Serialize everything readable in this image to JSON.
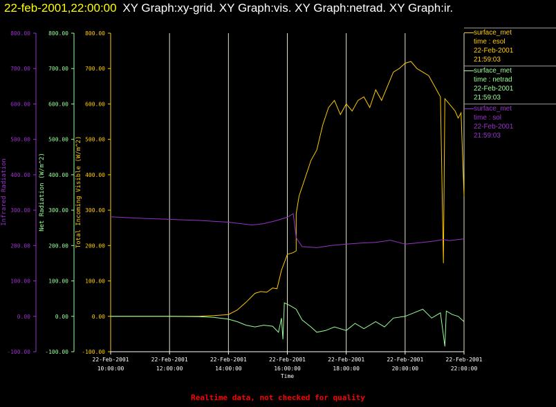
{
  "header": {
    "timestamp": "22-feb-2001,22:00:00",
    "graphs": "XY Graph:xy-grid.  XY Graph:vis.  XY Graph:netrad.  XY Graph:ir."
  },
  "footer": {
    "notice": "Realtime data, not checked for quality"
  },
  "legend": [
    {
      "line1": "surface_met",
      "line2": "time : esol",
      "line3": "22-Feb-2001",
      "line4": "21:59:03",
      "color": "#ffcc00"
    },
    {
      "line1": "surface_met",
      "line2": "time : netrad",
      "line3": "22-Feb-2001",
      "line4": "21:59:03",
      "color": "#99ff99"
    },
    {
      "line1": "surface_met",
      "line2": "time : sol",
      "line3": "22-Feb-2001",
      "line4": "21:59:03",
      "color": "#9933cc"
    }
  ],
  "chart_data": {
    "type": "line",
    "xlabel": "Time",
    "x_ticks": [
      {
        "date": "22-Feb-2001",
        "time": "10:00:00",
        "hour": 10
      },
      {
        "date": "22-Feb-2001",
        "time": "12:00:00",
        "hour": 12
      },
      {
        "date": "22-Feb-2001",
        "time": "14:00:00",
        "hour": 14
      },
      {
        "date": "22-Feb-2001",
        "time": "16:00:00",
        "hour": 16
      },
      {
        "date": "22-Feb-2001",
        "time": "18:00:00",
        "hour": 18
      },
      {
        "date": "22-Feb-2001",
        "time": "20:00:00",
        "hour": 20
      },
      {
        "date": "22-Feb-2001",
        "time": "22:00:00",
        "hour": 22
      }
    ],
    "xlim": [
      10,
      22
    ],
    "ylim": [
      -100,
      800
    ],
    "y_ticks": [
      "800.00",
      "700.00",
      "600.00",
      "500.00",
      "400.00",
      "300.00",
      "200.00",
      "100.00",
      "0.00",
      "-100.00"
    ],
    "y_tick_values": [
      800,
      700,
      600,
      500,
      400,
      300,
      200,
      100,
      0,
      -100
    ],
    "axes": [
      {
        "name": "ir",
        "label": "Infrared Radiation",
        "color": "#9933cc"
      },
      {
        "name": "netrad",
        "label": "Net Radiation (W/m^2)",
        "color": "#99ff99"
      },
      {
        "name": "vis",
        "label": "Total Incoming Visible (W/m^2)",
        "color": "#ffcc00"
      }
    ],
    "grid": true,
    "series": [
      {
        "name": "time : esol",
        "color": "#ffcc00",
        "points": [
          [
            10,
            0
          ],
          [
            11,
            0
          ],
          [
            12,
            0
          ],
          [
            13,
            0
          ],
          [
            13.5,
            2
          ],
          [
            14,
            5
          ],
          [
            14.3,
            18
          ],
          [
            14.6,
            40
          ],
          [
            14.9,
            65
          ],
          [
            15.1,
            70
          ],
          [
            15.3,
            68
          ],
          [
            15.5,
            80
          ],
          [
            15.65,
            78
          ],
          [
            15.8,
            130
          ],
          [
            16.0,
            175
          ],
          [
            16.2,
            180
          ],
          [
            16.3,
            185
          ],
          [
            16.3,
            290
          ],
          [
            16.4,
            340
          ],
          [
            16.6,
            390
          ],
          [
            16.8,
            440
          ],
          [
            17.0,
            470
          ],
          [
            17.2,
            540
          ],
          [
            17.4,
            590
          ],
          [
            17.6,
            610
          ],
          [
            17.8,
            570
          ],
          [
            18.0,
            600
          ],
          [
            18.2,
            580
          ],
          [
            18.4,
            610
          ],
          [
            18.6,
            620
          ],
          [
            18.8,
            590
          ],
          [
            19.0,
            640
          ],
          [
            19.2,
            610
          ],
          [
            19.4,
            650
          ],
          [
            19.6,
            690
          ],
          [
            19.8,
            700
          ],
          [
            20.0,
            715
          ],
          [
            20.2,
            720
          ],
          [
            20.4,
            700
          ],
          [
            20.6,
            690
          ],
          [
            20.8,
            680
          ],
          [
            21.0,
            650
          ],
          [
            21.2,
            620
          ],
          [
            21.3,
            150
          ],
          [
            21.35,
            615
          ],
          [
            21.5,
            600
          ],
          [
            21.7,
            580
          ],
          [
            21.8,
            560
          ],
          [
            21.9,
            575
          ],
          [
            22.0,
            340
          ]
        ]
      },
      {
        "name": "time : netrad",
        "color": "#99ff99",
        "points": [
          [
            10,
            0
          ],
          [
            11,
            0
          ],
          [
            12,
            0
          ],
          [
            13,
            -1
          ],
          [
            13.5,
            -3
          ],
          [
            14,
            -8
          ],
          [
            14.3,
            -15
          ],
          [
            14.6,
            -25
          ],
          [
            14.9,
            -30
          ],
          [
            15.2,
            -25
          ],
          [
            15.5,
            -28
          ],
          [
            15.7,
            -45
          ],
          [
            15.8,
            -5
          ],
          [
            15.85,
            -65
          ],
          [
            15.9,
            38
          ],
          [
            16.1,
            30
          ],
          [
            16.3,
            20
          ],
          [
            16.5,
            -10
          ],
          [
            16.8,
            -30
          ],
          [
            17.0,
            -45
          ],
          [
            17.3,
            -40
          ],
          [
            17.6,
            -30
          ],
          [
            18.0,
            -40
          ],
          [
            18.3,
            -20
          ],
          [
            18.6,
            -35
          ],
          [
            19.0,
            -15
          ],
          [
            19.3,
            -30
          ],
          [
            19.6,
            -5
          ],
          [
            20.0,
            0
          ],
          [
            20.3,
            10
          ],
          [
            20.6,
            20
          ],
          [
            20.9,
            -5
          ],
          [
            21.2,
            10
          ],
          [
            21.35,
            -85
          ],
          [
            21.4,
            15
          ],
          [
            21.6,
            5
          ],
          [
            21.8,
            0
          ],
          [
            22.0,
            -15
          ]
        ]
      },
      {
        "name": "time : sol",
        "color": "#9933cc",
        "points": [
          [
            10,
            281
          ],
          [
            11,
            277
          ],
          [
            12,
            274
          ],
          [
            13,
            271
          ],
          [
            14,
            266
          ],
          [
            14.8,
            258
          ],
          [
            15.2,
            262
          ],
          [
            15.6,
            270
          ],
          [
            16.0,
            280
          ],
          [
            16.2,
            290
          ],
          [
            16.3,
            222
          ],
          [
            16.5,
            197
          ],
          [
            17.0,
            194
          ],
          [
            17.5,
            200
          ],
          [
            18.0,
            204
          ],
          [
            18.5,
            207
          ],
          [
            19.0,
            209
          ],
          [
            19.5,
            215
          ],
          [
            20.0,
            204
          ],
          [
            20.5,
            208
          ],
          [
            21.0,
            213
          ],
          [
            21.3,
            217
          ],
          [
            21.5,
            214
          ],
          [
            22.0,
            219
          ]
        ]
      }
    ]
  }
}
